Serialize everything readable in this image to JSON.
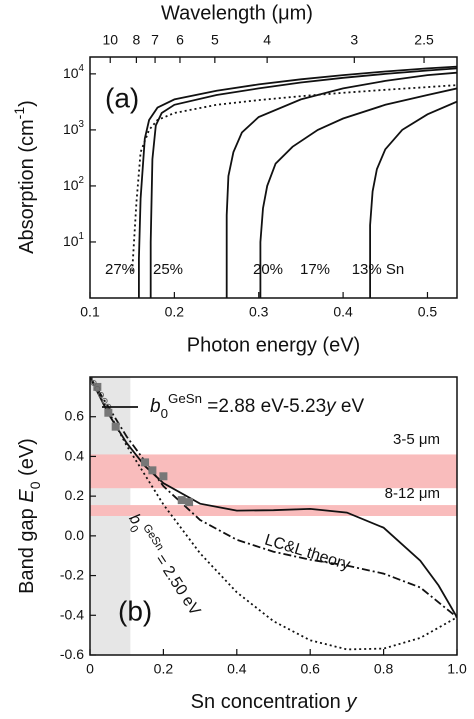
{
  "chart_data": [
    {
      "type": "line",
      "title": "Wavelength (μm)",
      "xlabel": "Photon energy (eV)",
      "ylabel": [
        {
          "text": "Absorption (cm"
        },
        {
          "text": "-1",
          "sup": true
        },
        {
          "text": ")"
        }
      ],
      "panel_label": "(a)",
      "log_y": true,
      "xlim": [
        0.1,
        0.535
      ],
      "xticks": [
        0.1,
        0.2,
        0.3,
        0.4,
        0.5
      ],
      "ylim": [
        1,
        20000
      ],
      "yticks": [
        {
          "value": 10,
          "label": "10",
          "exponent": "1"
        },
        {
          "value": 100,
          "label": "10",
          "exponent": "2"
        },
        {
          "value": 1000,
          "label": "10",
          "exponent": "3"
        },
        {
          "value": 10000,
          "label": "10",
          "exponent": "4"
        }
      ],
      "x2ticks": [
        10,
        8,
        7,
        6,
        5,
        4,
        3,
        2.5
      ],
      "series": [
        {
          "name": "27%",
          "color": "#111111",
          "linestyle": "solid",
          "x": [
            0.158,
            0.158,
            0.16,
            0.165,
            0.17,
            0.18,
            0.2,
            0.25,
            0.3,
            0.35,
            0.4,
            0.45,
            0.5,
            0.535
          ],
          "values": [
            1,
            5,
            60,
            700,
            1500,
            2500,
            3500,
            5000,
            6500,
            8000,
            9500,
            11000,
            12500,
            13500
          ]
        },
        {
          "name": "25%",
          "color": "#111111",
          "linestyle": "solid",
          "x": [
            0.172,
            0.172,
            0.174,
            0.178,
            0.185,
            0.2,
            0.25,
            0.3,
            0.35,
            0.4,
            0.45,
            0.5,
            0.535
          ],
          "values": [
            1,
            10,
            300,
            1200,
            2000,
            2800,
            4200,
            5500,
            7000,
            8500,
            10000,
            11500,
            12500
          ]
        },
        {
          "color": "#111111",
          "linestyle": "dotted",
          "x": [
            0.15,
            0.155,
            0.16,
            0.17,
            0.18,
            0.2,
            0.25,
            0.3,
            0.35,
            0.4,
            0.45,
            0.5,
            0.535
          ],
          "values": [
            3,
            50,
            400,
            1000,
            1500,
            2000,
            2800,
            3400,
            4000,
            4600,
            5200,
            5800,
            6300
          ]
        },
        {
          "name": "20%",
          "color": "#111111",
          "linestyle": "solid",
          "x": [
            0.262,
            0.262,
            0.264,
            0.27,
            0.28,
            0.3,
            0.35,
            0.4,
            0.45,
            0.5,
            0.535
          ],
          "values": [
            1,
            30,
            150,
            400,
            900,
            1700,
            3500,
            5500,
            7500,
            9500,
            10500
          ]
        },
        {
          "name": "17%",
          "color": "#111111",
          "linestyle": "solid",
          "x": [
            0.302,
            0.302,
            0.305,
            0.31,
            0.32,
            0.34,
            0.37,
            0.4,
            0.45,
            0.5,
            0.535
          ],
          "values": [
            1,
            10,
            40,
            100,
            250,
            500,
            1000,
            1600,
            2800,
            4200,
            5500
          ]
        },
        {
          "name": "13% Sn",
          "color": "#111111",
          "linestyle": "solid",
          "x": [
            0.432,
            0.432,
            0.435,
            0.44,
            0.45,
            0.47,
            0.5,
            0.535
          ],
          "values": [
            1,
            20,
            80,
            200,
            450,
            1000,
            1900,
            3200
          ]
        }
      ]
    },
    {
      "type": "line",
      "xlabel": [
        {
          "text": "Sn concentration "
        },
        {
          "text": "y",
          "italic": true
        }
      ],
      "ylabel": [
        {
          "text": "Band gap "
        },
        {
          "text": "E",
          "italic": true
        },
        {
          "text": "0",
          "sub": true
        },
        {
          "text": " (eV)"
        }
      ],
      "panel_label": "(b)",
      "xlim": [
        0,
        1
      ],
      "xticks": [
        0,
        0.2,
        0.4,
        0.6,
        0.8,
        {
          "value": 1,
          "label": "1.0"
        }
      ],
      "ylim": [
        -0.6,
        0.8
      ],
      "yticks": [
        -0.6,
        -0.4,
        -0.2,
        {
          "value": 0,
          "label": "0.0"
        },
        0.2,
        0.4,
        0.6
      ],
      "shade_x": [
        0,
        0.11
      ],
      "shade_color": "#e6e6e6",
      "bands": [
        {
          "label": "3-5 μm",
          "range": [
            0.24,
            0.41
          ],
          "color": "#f9bcbc"
        },
        {
          "label": "8-12 μm",
          "range": [
            0.1,
            0.155
          ],
          "color": "#f9bcbc"
        }
      ],
      "series": [
        {
          "name": [
            {
              "text": "b",
              "italic": true
            },
            {
              "text": "0",
              "sub": true
            },
            {
              "text": "GeSn",
              "sup": true
            },
            {
              "text": " =2.88 eV-5.23"
            },
            {
              "text": "y",
              "italic": true
            },
            {
              "text": " eV"
            }
          ],
          "color": "#111111",
          "linestyle": "solid",
          "x": [
            0,
            0.05,
            0.1,
            0.15,
            0.2,
            0.3,
            0.4,
            0.5,
            0.6,
            0.7,
            0.8,
            0.9,
            0.95,
            1
          ],
          "values": [
            0.8,
            0.615,
            0.467,
            0.351,
            0.265,
            0.162,
            0.127,
            0.129,
            0.136,
            0.117,
            0.041,
            -0.125,
            -0.25,
            -0.41
          ]
        },
        {
          "annotation": "LC&L theory",
          "color": "#111111",
          "linestyle": "dashdot",
          "x": [
            0,
            0.1,
            0.2,
            0.3,
            0.4,
            0.5,
            0.6,
            0.7,
            0.8,
            0.9,
            1
          ],
          "values": [
            0.8,
            0.5,
            0.25,
            0.08,
            -0.02,
            -0.08,
            -0.12,
            -0.15,
            -0.19,
            -0.26,
            -0.41
          ]
        },
        {
          "annotation": [
            {
              "text": "b",
              "italic": true
            },
            {
              "text": "0",
              "sub": true
            },
            {
              "text": "GeSn",
              "sup": true
            },
            {
              "text": " = 2.50 eV"
            }
          ],
          "color": "#111111",
          "linestyle": "dotted",
          "x": [
            0,
            0.1,
            0.2,
            0.3,
            0.4,
            0.5,
            0.6,
            0.7,
            0.8,
            0.9,
            1
          ],
          "values": [
            0.8,
            0.454,
            0.158,
            -0.088,
            -0.284,
            -0.43,
            -0.526,
            -0.572,
            -0.568,
            -0.514,
            -0.41
          ]
        }
      ],
      "points": [
        {
          "marker": "square",
          "color": "#777777",
          "x": [
            0.02,
            0.05,
            0.07,
            0.15,
            0.17,
            0.2,
            0.25,
            0.27
          ],
          "values": [
            0.75,
            0.62,
            0.55,
            0.37,
            0.33,
            0.3,
            0.18,
            0.17
          ]
        },
        {
          "marker": "circle",
          "color": "#666666",
          "x": [
            0,
            0.01,
            0.02,
            0.03,
            0.04,
            0.05
          ],
          "values": [
            0.79,
            0.77,
            0.74,
            0.71,
            0.68,
            0.65
          ]
        }
      ]
    }
  ]
}
